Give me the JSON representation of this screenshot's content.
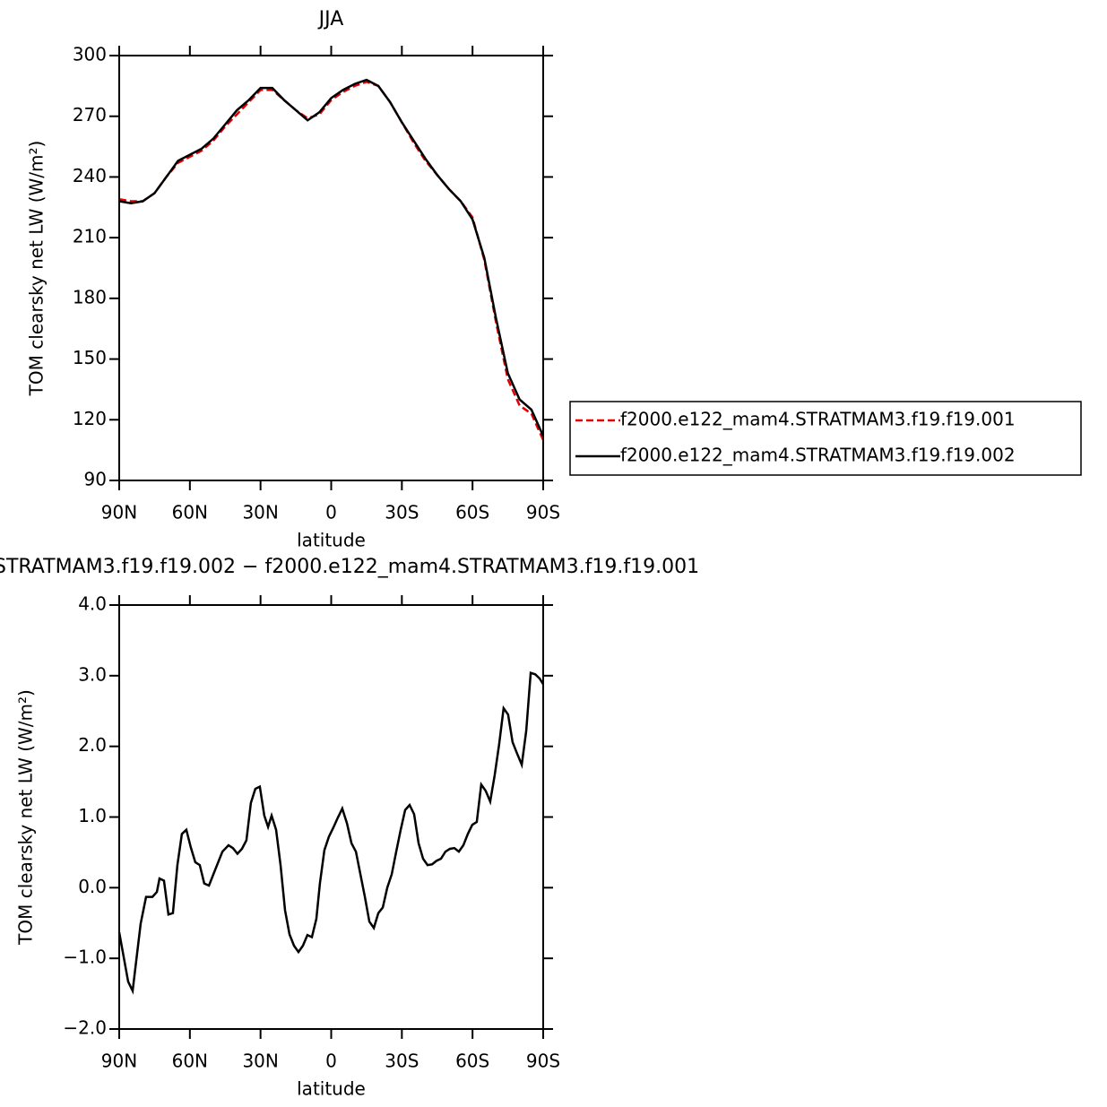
{
  "chart_data": [
    {
      "type": "line",
      "title": "JJA",
      "xlabel": "latitude",
      "ylabel": "TOM clearsky net LW (W/m²)",
      "x": [
        90,
        85,
        80,
        75,
        70,
        65,
        60,
        55,
        50,
        45,
        40,
        35,
        30,
        25,
        20,
        15,
        10,
        5,
        0,
        -5,
        -10,
        -15,
        -20,
        -25,
        -30,
        -35,
        -40,
        -45,
        -50,
        -55,
        -60,
        -65,
        -70,
        -75,
        -80,
        -85,
        -90
      ],
      "xlim": [
        90,
        -90
      ],
      "xticks": [
        {
          "value": 90,
          "label": "90N"
        },
        {
          "value": 60,
          "label": "60N"
        },
        {
          "value": 30,
          "label": "30N"
        },
        0,
        {
          "value": -30,
          "label": "30S"
        },
        {
          "value": -60,
          "label": "60S"
        },
        {
          "value": -90,
          "label": "90S"
        }
      ],
      "ylim": [
        90,
        300
      ],
      "yticks": [
        90,
        120,
        150,
        180,
        210,
        240,
        270,
        300
      ],
      "legend": "right",
      "series": [
        {
          "name": "f2000.e122_mam4.STRATMAM3.f19.f19.001",
          "color": "#e00000",
          "dash": "dashed",
          "values": [
            229,
            228,
            228,
            232,
            240,
            247,
            250,
            253,
            258,
            265,
            271,
            277,
            283,
            283,
            278,
            273,
            269,
            271,
            278,
            282,
            285,
            287,
            285,
            277,
            267,
            257,
            248,
            241,
            234,
            228,
            220,
            199,
            168,
            140,
            127,
            123,
            110
          ]
        },
        {
          "name": "f2000.e122_mam4.STRATMAM3.f19.f19.002",
          "color": "#000000",
          "dash": "solid",
          "values": [
            228,
            227,
            228,
            232,
            240,
            248,
            251,
            254,
            259,
            266,
            273,
            278,
            284,
            284,
            278,
            273,
            268,
            272,
            279,
            283,
            286,
            288,
            285,
            277,
            267,
            258,
            249,
            241,
            234,
            228,
            219,
            200,
            170,
            143,
            130,
            125,
            112
          ]
        }
      ]
    },
    {
      "type": "line",
      "title": "STRATMAM3.f19.f19.002 − f2000.e122_mam4.STRATMAM3.f19.f19.001",
      "xlabel": "latitude",
      "ylabel": "TOM clearsky net LW (W/m²)",
      "x": [
        90,
        86.2,
        84.3,
        80.9,
        78.6,
        75.9,
        74.0,
        72.9,
        71.0,
        69.1,
        67.2,
        65.3,
        63.4,
        61.5,
        59.6,
        57.7,
        55.8,
        53.9,
        51.9,
        49.3,
        46.2,
        43.6,
        41.7,
        39.8,
        37.9,
        36.0,
        34.1,
        32.2,
        30.3,
        28.4,
        26.8,
        25.3,
        23.4,
        21.5,
        19.6,
        17.7,
        15.8,
        13.9,
        12.0,
        10.1,
        8.2,
        6.3,
        4.8,
        2.9,
        1.0,
        -0.9,
        -2.8,
        -4.7,
        -6.7,
        -8.6,
        -10.5,
        -12.4,
        -14.3,
        -16.2,
        -18.1,
        -20.0,
        -21.9,
        -23.8,
        -25.7,
        -27.6,
        -29.5,
        -31.4,
        -33.3,
        -35.2,
        -37.1,
        -39.0,
        -40.9,
        -42.8,
        -44.7,
        -46.6,
        -48.5,
        -50.4,
        -52.3,
        -54.2,
        -56.1,
        -58.0,
        -59.9,
        -61.8,
        -63.7,
        -65.6,
        -67.5,
        -69.4,
        -71.3,
        -73.2,
        -75.1,
        -77.0,
        -78.9,
        -80.9,
        -82.8,
        -84.7,
        -86.6,
        -88.5,
        -90
      ],
      "xlim": [
        90,
        -90
      ],
      "xticks": [
        {
          "value": 90,
          "label": "90N"
        },
        {
          "value": 60,
          "label": "60N"
        },
        {
          "value": 30,
          "label": "30N"
        },
        0,
        {
          "value": -30,
          "label": "30S"
        },
        {
          "value": -60,
          "label": "60S"
        },
        {
          "value": -90,
          "label": "90S"
        }
      ],
      "ylim": [
        -2,
        4
      ],
      "yticks": [
        {
          "value": -2,
          "label": "−2.0"
        },
        {
          "value": -1,
          "label": "−1.0"
        },
        {
          "value": 0,
          "label": "0.0"
        },
        {
          "value": 1,
          "label": "1.0"
        },
        {
          "value": 2,
          "label": "2.0"
        },
        {
          "value": 3,
          "label": "3.0"
        },
        {
          "value": 4,
          "label": "4.0"
        }
      ],
      "series": [
        {
          "color": "#000000",
          "dash": "solid",
          "values": [
            -0.63,
            -1.33,
            -1.46,
            -0.51,
            -0.13,
            -0.13,
            -0.06,
            0.13,
            0.1,
            -0.38,
            -0.36,
            0.32,
            0.76,
            0.82,
            0.57,
            0.36,
            0.32,
            0.06,
            0.03,
            0.25,
            0.51,
            0.6,
            0.56,
            0.48,
            0.55,
            0.67,
            1.2,
            1.4,
            1.43,
            1.02,
            0.86,
            1.02,
            0.82,
            0.32,
            -0.32,
            -0.66,
            -0.82,
            -0.91,
            -0.82,
            -0.67,
            -0.7,
            -0.44,
            0.06,
            0.53,
            0.72,
            0.85,
            0.99,
            1.12,
            0.91,
            0.63,
            0.51,
            0.19,
            -0.13,
            -0.48,
            -0.57,
            -0.36,
            -0.28,
            0.0,
            0.19,
            0.51,
            0.82,
            1.1,
            1.17,
            1.04,
            0.63,
            0.41,
            0.32,
            0.33,
            0.38,
            0.41,
            0.51,
            0.55,
            0.56,
            0.51,
            0.6,
            0.76,
            0.89,
            0.93,
            1.46,
            1.37,
            1.22,
            1.59,
            2.03,
            2.54,
            2.45,
            2.06,
            1.9,
            1.74,
            2.22,
            3.04,
            3.02,
            2.96,
            2.88
          ]
        }
      ]
    }
  ]
}
